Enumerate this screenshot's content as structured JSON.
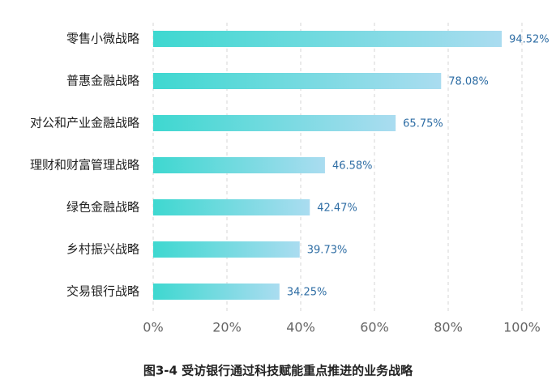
{
  "chart_data": {
    "type": "hbar",
    "title": "图3-4 受访银行通过科技赋能重点推进的业务战略",
    "categories": [
      "零售小微战略",
      "普惠金融战略",
      "对公和产业金融战略",
      "理财和财富管理战略",
      "绿色金融战略",
      "乡村振兴战略",
      "交易银行战略"
    ],
    "values": [
      94.52,
      78.08,
      65.75,
      46.58,
      42.47,
      39.73,
      34.25
    ],
    "value_labels": [
      "94.52%",
      "78.08%",
      "65.75%",
      "46.58%",
      "42.47%",
      "39.73%",
      "34.25%"
    ],
    "gradient": [
      "#3ed8d0",
      "#aadcf0"
    ],
    "xlim": [
      0,
      100
    ],
    "xticks": [
      {
        "value": 0,
        "label": "0%"
      },
      {
        "value": 20,
        "label": "20%"
      },
      {
        "value": 40,
        "label": "40%"
      },
      {
        "value": 60,
        "label": "60%"
      },
      {
        "value": 80,
        "label": "80%"
      },
      {
        "value": 100,
        "label": "100%"
      }
    ],
    "grid": true
  }
}
